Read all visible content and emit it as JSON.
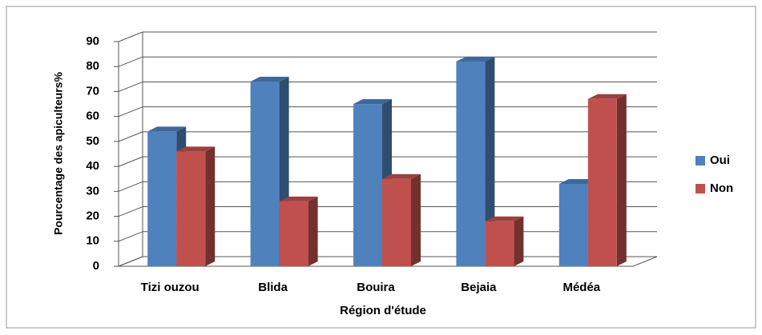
{
  "chart_data": {
    "type": "bar3d",
    "y_label": "Pourcentage des apiculteurs%",
    "x_label": "Région d'étude",
    "categories": [
      "Tizi ouzou",
      "Blida",
      "Bouira",
      "Bejaia",
      "Médéa"
    ],
    "series": [
      {
        "name": "Oui",
        "color": "#4f81bd",
        "values": [
          54,
          74,
          65,
          82,
          33
        ]
      },
      {
        "name": "Non",
        "color": "#c0504d",
        "values": [
          46,
          26,
          35,
          18,
          67
        ]
      }
    ],
    "ylim": [
      0,
      90
    ],
    "yticks": [
      0,
      10,
      20,
      30,
      40,
      50,
      60,
      70,
      80,
      90
    ],
    "grid": true,
    "legend": "right"
  }
}
